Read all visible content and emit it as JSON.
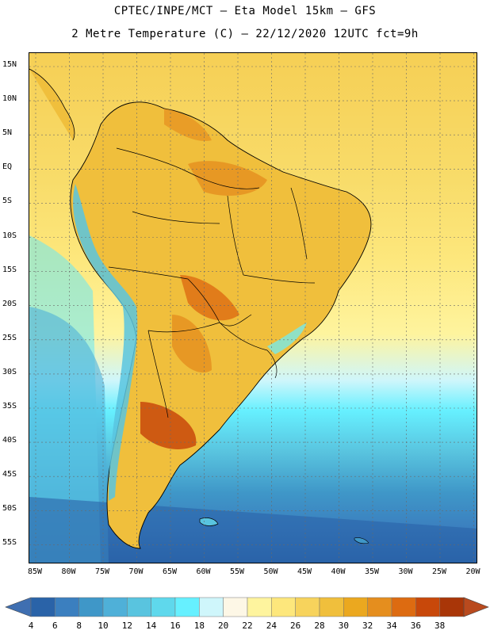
{
  "header": {
    "line1": "CPTEC/INPE/MCT –  Eta Model 15km – GFS",
    "line2": "2 Metre Temperature (C) – 22/12/2020 12UTC fct=9h"
  },
  "map": {
    "lat_labels": [
      "15N",
      "10N",
      "5N",
      "EQ",
      "5S",
      "10S",
      "15S",
      "20S",
      "25S",
      "30S",
      "35S",
      "40S",
      "45S",
      "50S",
      "55S"
    ],
    "lon_labels": [
      "85W",
      "80W",
      "75W",
      "70W",
      "65W",
      "60W",
      "55W",
      "50W",
      "45W",
      "40W",
      "35W",
      "30W",
      "25W",
      "20W"
    ]
  },
  "colorbar": {
    "labels": [
      "4",
      "6",
      "8",
      "10",
      "12",
      "14",
      "16",
      "18",
      "20",
      "22",
      "24",
      "26",
      "28",
      "30",
      "32",
      "34",
      "36",
      "38"
    ],
    "colors": [
      "#2a63a8",
      "#3b7fbf",
      "#3f97c8",
      "#4fb0d8",
      "#59c4df",
      "#5fd8ec",
      "#66f0ff",
      "#cff6fb",
      "#fdf7e6",
      "#fef49e",
      "#fde77c",
      "#f7d35c",
      "#f0bf3c",
      "#eba81f",
      "#e58e1e",
      "#dd6b11",
      "#c8480a",
      "#a93608",
      "#c24a21"
    ],
    "colors_note_arrow_left": "#3f6fb1",
    "colors_note_arrow_right": "#b94a1e"
  }
}
